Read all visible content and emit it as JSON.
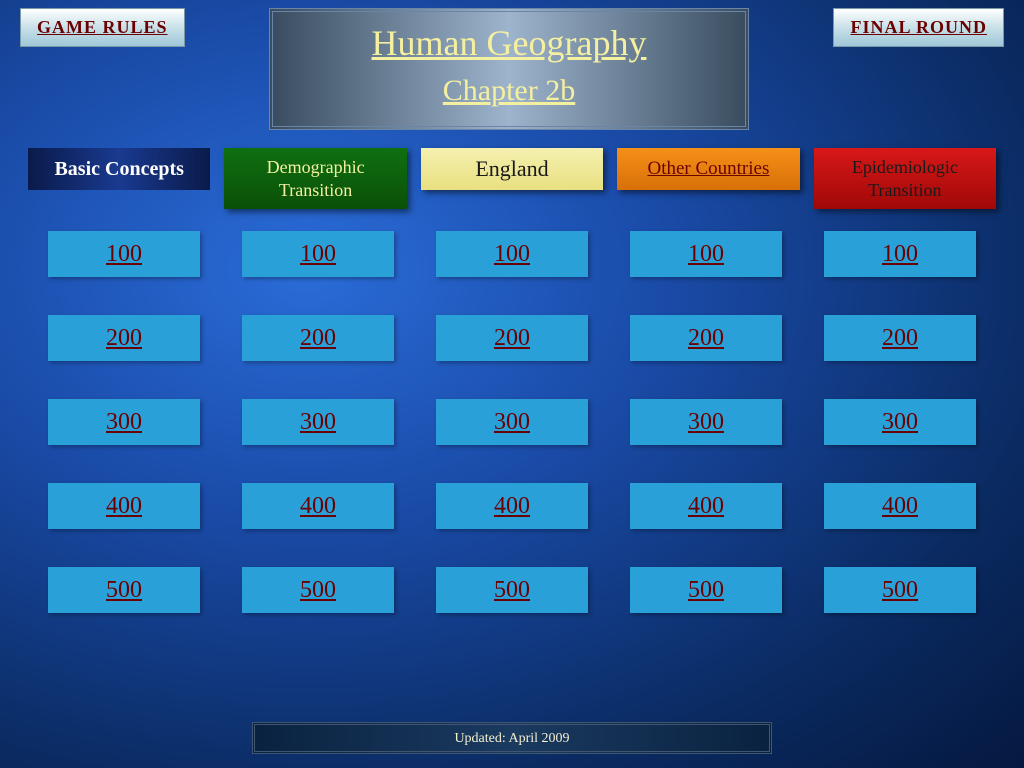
{
  "nav": {
    "rules_label": "GAME RULES",
    "final_label": "FINAL ROUND"
  },
  "title": {
    "line1": "Human Geography",
    "line2": "Chapter 2b"
  },
  "categories": [
    {
      "label": "Basic Concepts",
      "bg": "linear-gradient(to right,#0a1a4a,#1a3a90,#0a1a4a)",
      "color": "#ffffff",
      "underline": false,
      "two_line": false,
      "font_family": "'Times New Roman', serif",
      "font_weight": "bold",
      "shadow": "none",
      "font_size": "20px"
    },
    {
      "label": "Demographic Transition",
      "bg": "linear-gradient(to bottom,#0f7010,#0a5008)",
      "color": "#f5f0a0",
      "underline": false,
      "two_line": true,
      "font_family": "'Palatino Linotype', Georgia, serif",
      "font_weight": "normal",
      "shadow": "3px 3px 6px rgba(0,0,0,0.5)",
      "font_size": "18px"
    },
    {
      "label": "England",
      "bg": "linear-gradient(to bottom,#f5f0b0,#e8e080)",
      "color": "#1a1a1a",
      "underline": false,
      "two_line": false,
      "font_family": "'Palatino Linotype', Georgia, serif",
      "font_weight": "normal",
      "shadow": "3px 3px 6px rgba(0,0,0,0.5)",
      "font_size": "22px"
    },
    {
      "label": "Other Countries",
      "bg": "linear-gradient(to bottom,#f59018,#d87008)",
      "color": "#6b0000",
      "underline": true,
      "two_line": false,
      "font_family": "'Palatino Linotype', Georgia, serif",
      "font_weight": "normal",
      "shadow": "3px 3px 6px rgba(0,0,0,0.5)",
      "font_size": "19px"
    },
    {
      "label": "Epidemiologic Transition",
      "bg": "linear-gradient(to bottom,#d81818,#a00808)",
      "color": "#1a1a1a",
      "underline": false,
      "two_line": true,
      "font_family": "'Palatino Linotype', Georgia, serif",
      "font_weight": "normal",
      "shadow": "3px 3px 6px rgba(0,0,0,0.5)",
      "font_size": "18px"
    }
  ],
  "values": [
    "100",
    "200",
    "300",
    "400",
    "500"
  ],
  "value_cell": {
    "bg": "#2aa0d8",
    "text_color": "#6b0000"
  },
  "footer": {
    "text": "Updated: April 2009"
  }
}
